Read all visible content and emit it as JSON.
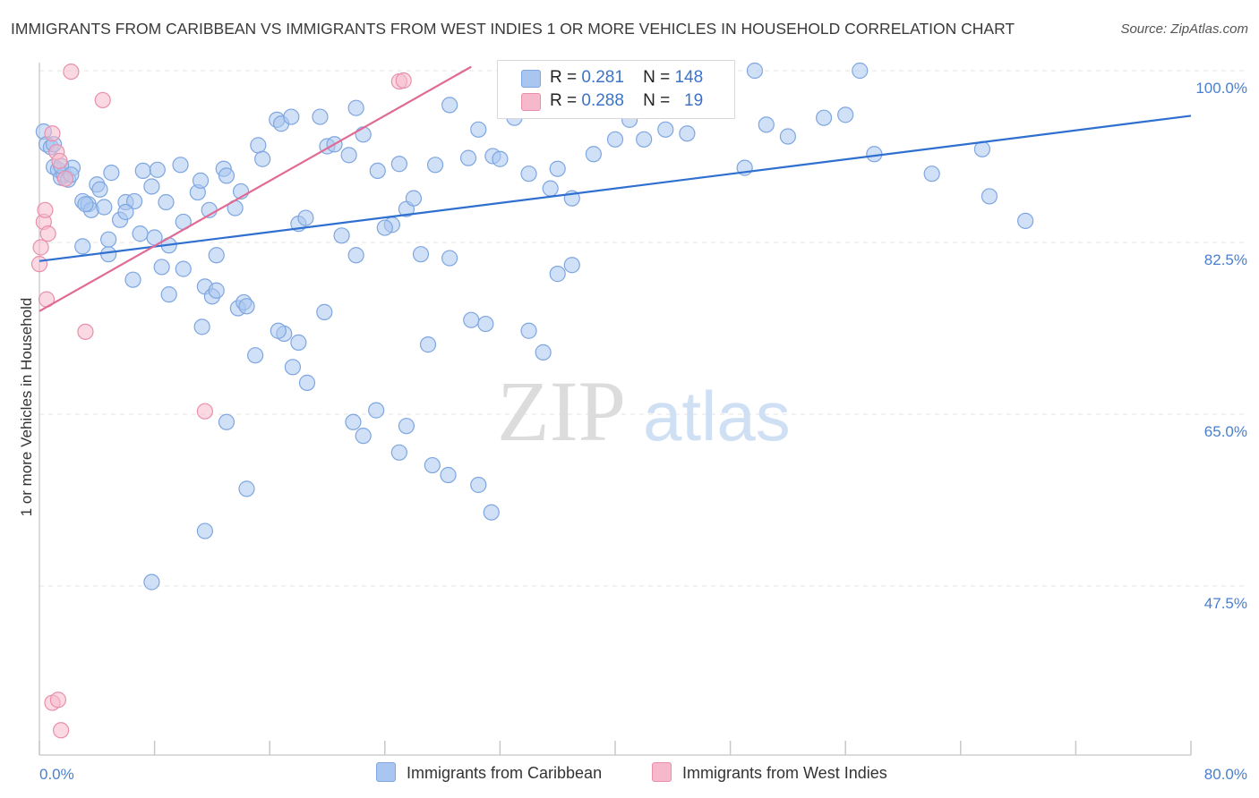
{
  "title": "IMMIGRANTS FROM CARIBBEAN VS IMMIGRANTS FROM WEST INDIES 1 OR MORE VEHICLES IN HOUSEHOLD CORRELATION CHART",
  "source": "Source: ZipAtlas.com",
  "watermark": {
    "zip": "ZIP",
    "atlas": "atlas"
  },
  "legend": {
    "r_label": "R =",
    "n_label": "N =",
    "rows": [
      {
        "r": "0.281",
        "n": "148",
        "color": "#a9c6f0",
        "border": "#7ea6e0"
      },
      {
        "r": "0.288",
        "n": "19",
        "color": "#f6b9cc",
        "border": "#ea8fab"
      }
    ]
  },
  "bottom_legend": [
    {
      "label": "Immigrants from Caribbean",
      "color": "#a9c6f0"
    },
    {
      "label": "Immigrants from West Indies",
      "color": "#f6b9cc"
    }
  ],
  "chart_data": {
    "type": "scatter",
    "title": "IMMIGRANTS FROM CARIBBEAN VS IMMIGRANTS FROM WEST INDIES 1 OR MORE VEHICLES IN HOUSEHOLD CORRELATION CHART",
    "xlabel": "",
    "ylabel": "1 or more Vehicles in Household",
    "xlim": [
      0,
      80
    ],
    "ylim": [
      32.5,
      102
    ],
    "x_tick_labels": [
      "0.0%",
      "80.0%"
    ],
    "y_ticks": [
      47.5,
      65.0,
      82.5,
      100.0
    ],
    "y_tick_labels": [
      "47.5%",
      "65.0%",
      "82.5%",
      "100.0%"
    ],
    "grid": true,
    "legend_position": "top-center",
    "series": [
      {
        "name": "Immigrants from Caribbean",
        "color": "#7ea6e0",
        "fill": "#a9c6f0",
        "trend": {
          "x": [
            0,
            80
          ],
          "y": [
            80.6,
            95.4
          ]
        },
        "points": [
          [
            0.3,
            93.8
          ],
          [
            0.5,
            92.5
          ],
          [
            0.8,
            92.2
          ],
          [
            1.0,
            90.2
          ],
          [
            1.3,
            89.9
          ],
          [
            1.5,
            89.1
          ],
          [
            1.7,
            89.4
          ],
          [
            2.0,
            88.9
          ],
          [
            2.3,
            90.1
          ],
          [
            3.0,
            86.7
          ],
          [
            3.4,
            86.4
          ],
          [
            3.6,
            85.8
          ],
          [
            4.0,
            88.4
          ],
          [
            4.2,
            87.9
          ],
          [
            4.5,
            86.1
          ],
          [
            5.0,
            89.6
          ],
          [
            5.6,
            84.8
          ],
          [
            6.0,
            86.6
          ],
          [
            6.6,
            86.7
          ],
          [
            7.2,
            89.8
          ],
          [
            7.8,
            88.2
          ],
          [
            8.2,
            89.9
          ],
          [
            8.8,
            86.6
          ],
          [
            9.0,
            82.2
          ],
          [
            9.8,
            90.4
          ],
          [
            10.0,
            84.6
          ],
          [
            11.0,
            87.6
          ],
          [
            11.2,
            88.8
          ],
          [
            11.8,
            85.8
          ],
          [
            12.3,
            81.2
          ],
          [
            12.8,
            90.0
          ],
          [
            13.0,
            89.3
          ],
          [
            13.6,
            86.0
          ],
          [
            14.0,
            87.7
          ],
          [
            15.2,
            92.4
          ],
          [
            15.5,
            91.0
          ],
          [
            16.5,
            95.0
          ],
          [
            16.8,
            94.6
          ],
          [
            17.5,
            95.3
          ],
          [
            18.0,
            84.4
          ],
          [
            18.5,
            85.0
          ],
          [
            19.5,
            95.3
          ],
          [
            20.0,
            92.3
          ],
          [
            20.5,
            92.5
          ],
          [
            21.5,
            91.4
          ],
          [
            22.0,
            96.2
          ],
          [
            22.5,
            93.5
          ],
          [
            23.5,
            89.8
          ],
          [
            24.5,
            84.3
          ],
          [
            25.0,
            90.5
          ],
          [
            25.5,
            85.9
          ],
          [
            26.0,
            87.0
          ],
          [
            27.5,
            90.4
          ],
          [
            28.5,
            96.5
          ],
          [
            29.8,
            91.1
          ],
          [
            30.5,
            94.0
          ],
          [
            31.5,
            91.3
          ],
          [
            32.0,
            91.0
          ],
          [
            33.0,
            95.2
          ],
          [
            34.0,
            89.5
          ],
          [
            35.5,
            88.0
          ],
          [
            36.0,
            90.0
          ],
          [
            37.0,
            87.0
          ],
          [
            38.5,
            91.5
          ],
          [
            40.0,
            93.0
          ],
          [
            41.0,
            95.0
          ],
          [
            42.0,
            93.0
          ],
          [
            43.5,
            94.0
          ],
          [
            45.0,
            93.6
          ],
          [
            45.5,
            96.2
          ],
          [
            46.0,
            96.0
          ],
          [
            47.5,
            96.5
          ],
          [
            49.0,
            90.1
          ],
          [
            49.7,
            100.0
          ],
          [
            50.5,
            94.5
          ],
          [
            52.0,
            93.3
          ],
          [
            54.5,
            95.2
          ],
          [
            56.0,
            95.5
          ],
          [
            57.0,
            100.0
          ],
          [
            58.0,
            91.5
          ],
          [
            62.0,
            89.5
          ],
          [
            65.5,
            92.0
          ],
          [
            66.0,
            87.2
          ],
          [
            68.5,
            84.7
          ],
          [
            3.0,
            82.1
          ],
          [
            3.2,
            86.4
          ],
          [
            7.0,
            83.4
          ],
          [
            8.0,
            83.0
          ],
          [
            6.5,
            78.7
          ],
          [
            8.5,
            80.0
          ],
          [
            10.0,
            79.8
          ],
          [
            11.5,
            78.0
          ],
          [
            12.0,
            77.0
          ],
          [
            13.8,
            75.8
          ],
          [
            14.2,
            76.4
          ],
          [
            15.0,
            71.0
          ],
          [
            17.0,
            73.2
          ],
          [
            18.0,
            72.3
          ],
          [
            19.8,
            75.4
          ],
          [
            21.0,
            83.2
          ],
          [
            22.0,
            81.2
          ],
          [
            24.0,
            84.0
          ],
          [
            26.5,
            81.3
          ],
          [
            27.0,
            72.1
          ],
          [
            28.5,
            80.9
          ],
          [
            30.0,
            74.6
          ],
          [
            31.0,
            74.2
          ],
          [
            34.0,
            73.5
          ],
          [
            35.0,
            71.3
          ],
          [
            36.0,
            79.3
          ],
          [
            37.0,
            80.2
          ],
          [
            4.8,
            81.3
          ],
          [
            9.0,
            77.2
          ],
          [
            11.3,
            73.9
          ],
          [
            12.3,
            77.6
          ],
          [
            14.4,
            76.0
          ],
          [
            16.6,
            73.5
          ],
          [
            17.6,
            69.8
          ],
          [
            18.6,
            68.2
          ],
          [
            21.8,
            64.2
          ],
          [
            22.5,
            62.8
          ],
          [
            23.4,
            65.4
          ],
          [
            25.0,
            61.1
          ],
          [
            25.5,
            63.8
          ],
          [
            27.3,
            59.8
          ],
          [
            28.4,
            58.8
          ],
          [
            30.5,
            57.8
          ],
          [
            31.4,
            55.0
          ],
          [
            13.0,
            64.2
          ],
          [
            14.4,
            57.4
          ],
          [
            11.5,
            53.1
          ],
          [
            7.8,
            47.9
          ],
          [
            1.0,
            92.5
          ],
          [
            1.5,
            90.3
          ],
          [
            2.2,
            89.4
          ],
          [
            4.8,
            82.8
          ],
          [
            6.0,
            85.6
          ]
        ]
      },
      {
        "name": "Immigrants from West Indies",
        "color": "#ea8fab",
        "fill": "#f6b9cc",
        "trend": {
          "x": [
            0,
            30
          ],
          "y": [
            75.5,
            100.4
          ]
        },
        "points": [
          [
            0.0,
            80.3
          ],
          [
            0.1,
            82.0
          ],
          [
            0.3,
            84.6
          ],
          [
            0.4,
            85.8
          ],
          [
            0.6,
            83.4
          ],
          [
            0.5,
            76.7
          ],
          [
            0.9,
            93.6
          ],
          [
            1.2,
            91.7
          ],
          [
            1.4,
            90.8
          ],
          [
            1.8,
            89.0
          ],
          [
            2.2,
            99.9
          ],
          [
            4.4,
            97.0
          ],
          [
            3.2,
            73.4
          ],
          [
            11.5,
            65.3
          ],
          [
            25.0,
            98.9
          ],
          [
            25.3,
            99.0
          ],
          [
            0.9,
            35.6
          ],
          [
            1.3,
            35.9
          ],
          [
            1.5,
            32.8
          ]
        ]
      }
    ]
  }
}
